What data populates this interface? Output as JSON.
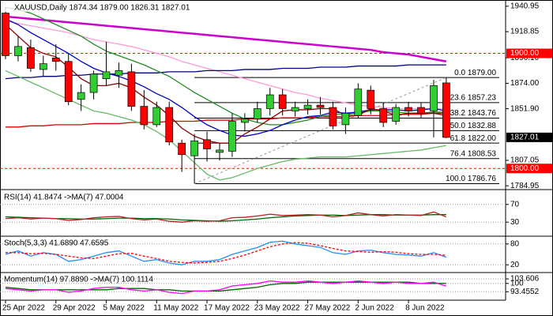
{
  "chart_data": [
    {
      "type": "candlestick",
      "title": "XAUUSD,Daily 1874.34 1879.00 1826.31 1827.01",
      "categories": [
        "25 Apr 2022",
        null,
        null,
        null,
        "29 Apr 2022",
        null,
        null,
        null,
        "5 May 2022",
        null,
        null,
        null,
        "11 May 2022",
        null,
        null,
        null,
        "17 May 2022",
        null,
        null,
        null,
        "23 May 2022",
        null,
        null,
        null,
        "27 May 2022",
        null,
        null,
        null,
        "2 Jun 2022",
        null,
        null,
        null,
        "8 Jun 2022",
        null,
        null,
        null
      ],
      "open": [
        1935,
        1898,
        1905,
        1886,
        1896,
        1893,
        1860,
        1866,
        1878,
        1881,
        1884,
        1854,
        1838,
        1853,
        1822,
        1811,
        1825,
        1814,
        1815,
        1840,
        1843,
        1852,
        1864,
        1850,
        1852,
        1855,
        1853,
        1838,
        1846,
        1868,
        1852,
        1841,
        1853,
        1853,
        1850,
        1874.34
      ],
      "high": [
        1940,
        1915,
        1912,
        1898,
        1908,
        1900,
        1873,
        1885,
        1910,
        1892,
        1891,
        1868,
        1858,
        1858,
        1825,
        1830,
        1832,
        1822,
        1848,
        1848,
        1858,
        1870,
        1869,
        1858,
        1860,
        1862,
        1858,
        1853,
        1874,
        1872,
        1857,
        1856,
        1858,
        1857,
        1877,
        1879
      ],
      "low": [
        1895,
        1893,
        1884,
        1880,
        1885,
        1855,
        1850,
        1860,
        1872,
        1870,
        1850,
        1834,
        1836,
        1820,
        1797,
        1787,
        1806,
        1807,
        1810,
        1832,
        1840,
        1846,
        1846,
        1845,
        1847,
        1847,
        1834,
        1830,
        1844,
        1847,
        1836,
        1838,
        1845,
        1844,
        1827,
        1826.31
      ],
      "close": [
        1898,
        1906,
        1887,
        1891,
        1893,
        1858,
        1866,
        1882,
        1884,
        1885,
        1854,
        1838,
        1853,
        1823,
        1812,
        1824,
        1817,
        1816,
        1841,
        1843,
        1852,
        1864,
        1852,
        1853,
        1855,
        1853,
        1837,
        1848,
        1869,
        1852,
        1840,
        1853,
        1850,
        1848,
        1872,
        1827.01
      ],
      "up_color": "#32cd32",
      "down_color": "#ff0000",
      "series": [
        {
          "color": "#ff9ad5",
          "values": [
            1928,
            1926,
            1924,
            1922,
            1920,
            1918,
            1915,
            1912,
            1910,
            1908,
            1906,
            1903,
            1900,
            1897,
            1893,
            1890,
            1887,
            1884,
            1881,
            1878,
            1875,
            1872,
            1869,
            1866,
            1864,
            1861,
            1859,
            1857,
            1855,
            1854,
            1853,
            1852,
            1852,
            1852,
            1852,
            1852
          ]
        },
        {
          "color": "#cc00cc",
          "values": [
            1932,
            1931,
            1930,
            1929,
            1928,
            1927,
            1926,
            1925,
            1924,
            1923,
            1922,
            1921,
            1920,
            1919,
            1918,
            1917,
            1916,
            1915,
            1914,
            1913,
            1912,
            1911,
            1910,
            1909,
            1908,
            1907,
            1906,
            1905,
            1904,
            1903,
            1901,
            1900,
            1899,
            1897,
            1895,
            1893
          ]
        },
        {
          "color": "#000080",
          "values": [
            1878,
            1879,
            1879,
            1880,
            1880,
            1881,
            1881,
            1882,
            1882,
            1882,
            1883,
            1883,
            1883,
            1884,
            1884,
            1884,
            1885,
            1885,
            1885,
            1886,
            1886,
            1886,
            1887,
            1887,
            1887,
            1888,
            1888,
            1888,
            1889,
            1889,
            1889,
            1889,
            1890,
            1890,
            1890,
            1890
          ]
        },
        {
          "color": "#dd0000",
          "values": [
            1836,
            1836,
            1837,
            1837,
            1838,
            1838,
            1838,
            1839,
            1839,
            1839,
            1840,
            1840,
            1840,
            1841,
            1841,
            1841,
            1842,
            1842,
            1842,
            1843,
            1843,
            1843,
            1844,
            1844,
            1844,
            1845,
            1845,
            1845,
            1846,
            1846,
            1846,
            1847,
            1847,
            1847,
            1848,
            1848
          ]
        },
        {
          "color": "#66bb66",
          "values": [
            1885,
            1880,
            1875,
            1870,
            1865,
            1860,
            1855,
            1850,
            1848,
            1845,
            1842,
            1838,
            1832,
            1825,
            1815,
            1805,
            1795,
            1790,
            1792,
            1796,
            1800,
            1803,
            1806,
            1808,
            1809,
            1810,
            1810,
            1810,
            1811,
            1812,
            1813,
            1814,
            1815,
            1816,
            1818,
            1820
          ]
        },
        {
          "color": "#228b22",
          "values": [
            1940,
            1938,
            1935,
            1930,
            1925,
            1920,
            1915,
            1908,
            1902,
            1898,
            1894,
            1890,
            1885,
            1880,
            1873,
            1866,
            1860,
            1854,
            1848,
            1843,
            1840,
            1838,
            1838,
            1840,
            1842,
            1845,
            1847,
            1847,
            1848,
            1850,
            1850,
            1849,
            1848,
            1848,
            1849,
            1849
          ]
        },
        {
          "color": "#0000cd",
          "values": [
            1930,
            1925,
            1918,
            1912,
            1906,
            1900,
            1893,
            1887,
            1883,
            1880,
            1876,
            1871,
            1865,
            1860,
            1853,
            1845,
            1838,
            1833,
            1829,
            1828,
            1830,
            1833,
            1838,
            1842,
            1845,
            1846,
            1849,
            1848,
            1849,
            1851,
            1851,
            1851,
            1850,
            1851,
            1852,
            1850
          ]
        },
        {
          "color": "#8b0000",
          "values": [
            1925,
            1915,
            1905,
            1900,
            1897,
            1888,
            1878,
            1872,
            1872,
            1874,
            1870,
            1862,
            1855,
            1846,
            1835,
            1828,
            1824,
            1822,
            1822,
            1830,
            1836,
            1843,
            1850,
            1851,
            1851,
            1852,
            1852,
            1846,
            1846,
            1852,
            1850,
            1846,
            1848,
            1848,
            1848,
            1846
          ]
        }
      ],
      "ylim": [
        1783,
        1945
      ],
      "yticks": [
        1940.95,
        1918.85,
        {
          "value": 1896.1,
          "label": "1896.10"
        },
        {
          "value": 1874,
          "label": "1874.00"
        },
        {
          "value": 1851.9,
          "label": "1851.90"
        },
        1807.05,
        1784.95
      ],
      "levels": [
        {
          "value": 1900,
          "label": "1900.00",
          "color": "#ff0000"
        },
        {
          "value": 1800,
          "label": "1800.00",
          "color": "#ff0000"
        }
      ],
      "last_price": {
        "value": 1827.01,
        "label": "1827.01"
      },
      "fibonacci": [
        {
          "value": 1879,
          "label": "0.0 1879.00"
        },
        {
          "value": 1857.23,
          "label": "23.6 1857.23"
        },
        {
          "value": 1843.76,
          "label": "38.2 1843.76"
        },
        {
          "value": 1832.88,
          "label": "50.0 1832.88"
        },
        {
          "value": 1822,
          "label": "61.8 1822.00"
        },
        {
          "value": 1808.53,
          "label": "76.4 1808.53"
        },
        {
          "value": 1786.76,
          "label": "100.0 1786.76"
        }
      ]
    },
    {
      "type": "line",
      "title": "RSI(14) 41.8474 ->MA(7) 47.0004",
      "series": [
        {
          "color": "#006400",
          "values": [
            42,
            41,
            40,
            39,
            38,
            38,
            37,
            37,
            38,
            39,
            39,
            38,
            38,
            37,
            35,
            34,
            33,
            32,
            33,
            35,
            37,
            40,
            42,
            44,
            45,
            46,
            46,
            45,
            46,
            47,
            47,
            46,
            46,
            46,
            47,
            47.0004
          ]
        },
        {
          "color": "#b22222",
          "values": [
            38,
            40,
            37,
            39,
            38,
            34,
            36,
            40,
            42,
            43,
            38,
            35,
            37,
            32,
            30,
            33,
            32,
            33,
            40,
            41,
            44,
            48,
            45,
            46,
            47,
            46,
            42,
            45,
            51,
            47,
            44,
            47,
            46,
            45,
            53,
            41.8474
          ]
        }
      ],
      "ylim": [
        0,
        100
      ],
      "yticks": [
        70,
        30
      ]
    },
    {
      "type": "line",
      "title": "Stoch(5,3,3) 41.6890 47.6595",
      "series": [
        {
          "color": "#1e90ff",
          "values": [
            50,
            60,
            45,
            55,
            50,
            30,
            35,
            45,
            55,
            60,
            45,
            30,
            35,
            25,
            20,
            30,
            30,
            35,
            50,
            60,
            70,
            85,
            88,
            80,
            75,
            70,
            55,
            50,
            60,
            62,
            55,
            50,
            48,
            45,
            55,
            41.689
          ]
        },
        {
          "color": "#ff0000",
          "dashed": true,
          "values": [
            55,
            55,
            52,
            53,
            50,
            45,
            40,
            38,
            45,
            52,
            53,
            45,
            38,
            30,
            27,
            25,
            27,
            30,
            38,
            48,
            60,
            72,
            80,
            84,
            82,
            75,
            67,
            60,
            58,
            56,
            58,
            56,
            52,
            50,
            50,
            47.6595
          ]
        }
      ],
      "ylim": [
        0,
        100
      ],
      "yticks": [
        80,
        20
      ]
    },
    {
      "type": "line",
      "title": "Momentum(14) 97.8890 ->MA(7) 100.1114",
      "series": [
        {
          "color": "#006400",
          "values": [
            97,
            96,
            95,
            95,
            95,
            95,
            95,
            95,
            95,
            96,
            96,
            96,
            95,
            95,
            94,
            94,
            94,
            94,
            95,
            96,
            97,
            99,
            100,
            100,
            101,
            101,
            101,
            101,
            101,
            101,
            101,
            101,
            101,
            100,
            100,
            100.1114
          ]
        },
        {
          "color": "#ff00ff",
          "values": [
            96,
            95,
            94,
            95,
            95,
            93,
            94,
            96,
            97,
            97,
            95,
            94,
            95,
            93,
            92,
            94,
            94,
            95,
            98,
            99,
            100,
            102,
            101,
            101,
            102,
            101,
            100,
            101,
            102,
            101,
            100,
            101,
            100,
            100,
            101,
            97.889
          ]
        }
      ],
      "ylim": [
        88,
        108
      ],
      "yticks": [
        103.606,
        100,
        93.4552
      ]
    }
  ]
}
